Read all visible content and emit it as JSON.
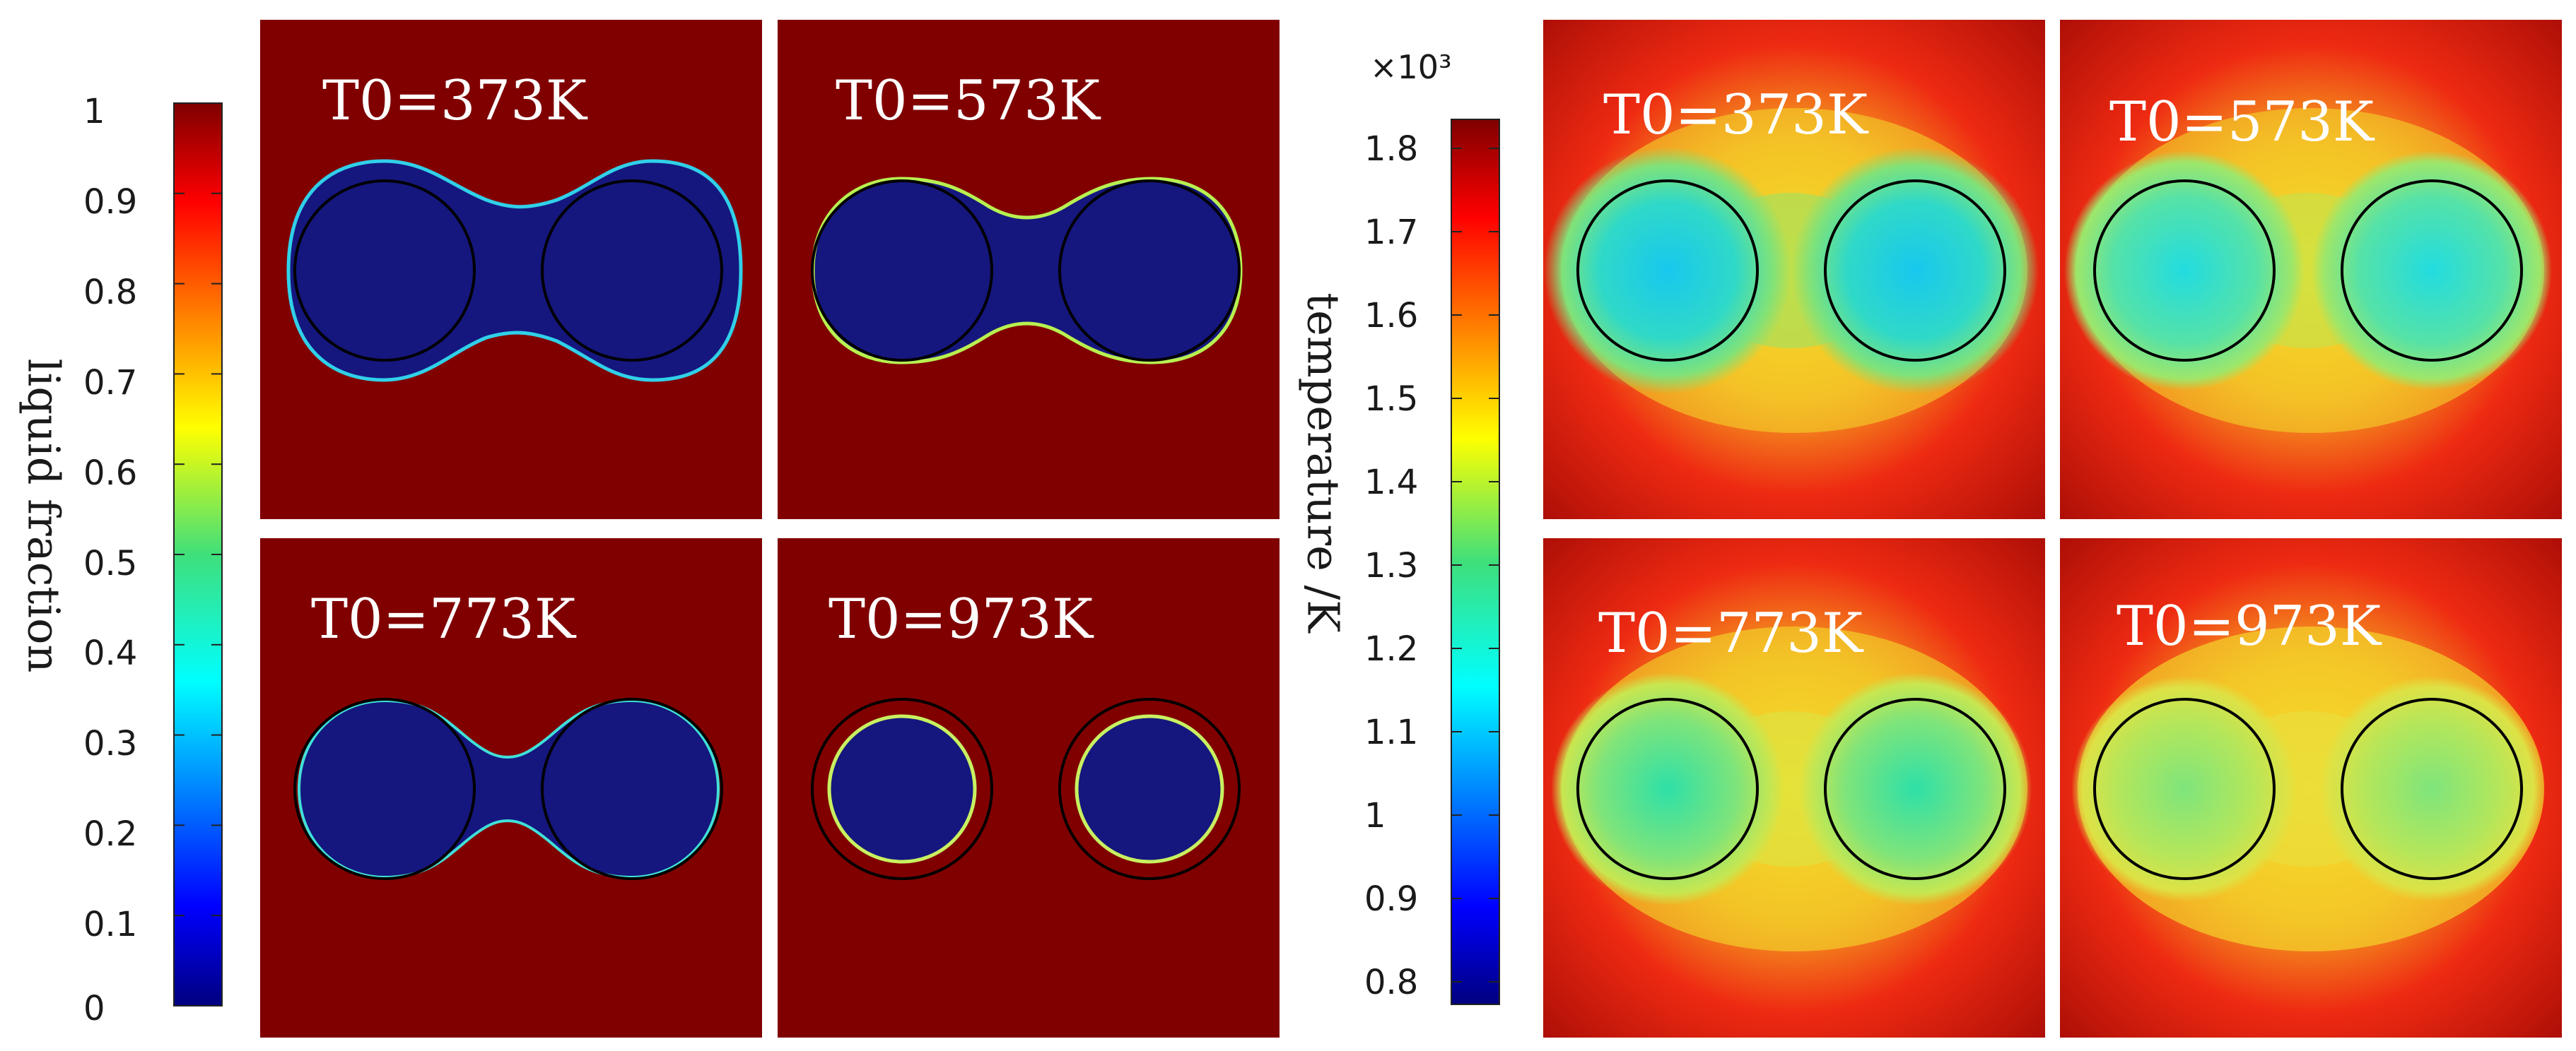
{
  "colors": {
    "background": "#800000",
    "solid": "#15177e",
    "outline": "#000000"
  },
  "liquid_fraction_colorbar": {
    "label": "liquid fraction",
    "ticks": [
      "1",
      "0.9",
      "0.8",
      "0.7",
      "0.6",
      "0.5",
      "0.4",
      "0.3",
      "0.2",
      "0.1",
      "0"
    ]
  },
  "temperature_colorbar": {
    "label": "temperature /K",
    "multiplier": "×10³",
    "ticks": [
      "1.8",
      "1.7",
      "1.6",
      "1.5",
      "1.4",
      "1.3",
      "1.2",
      "1.1",
      "1",
      "0.9",
      "0.8"
    ]
  },
  "liquid_fraction_panels": [
    {
      "label": "T0=373K"
    },
    {
      "label": "T0=573K"
    },
    {
      "label": "T0=773K"
    },
    {
      "label": "T0=973K"
    }
  ],
  "temperature_panels": [
    {
      "label": "T0=373K"
    },
    {
      "label": "T0=573K"
    },
    {
      "label": "T0=773K"
    },
    {
      "label": "T0=973K"
    }
  ]
}
